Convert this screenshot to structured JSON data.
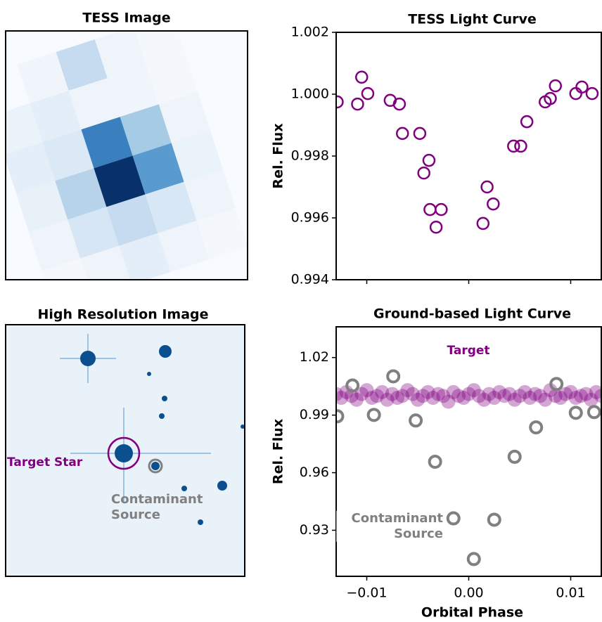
{
  "chart_data": [
    {
      "type": "image",
      "title": "TESS Image"
    },
    {
      "type": "scatter",
      "title": "TESS Light Curve",
      "ylabel": "Rel. Flux",
      "color": "#800080",
      "marker": "open",
      "x": [
        -0.0129,
        -0.0109,
        -0.0105,
        -0.0099,
        -0.0077,
        -0.0068,
        -0.0065,
        -0.0048,
        -0.0039,
        -0.0044,
        -0.0038,
        -0.0027,
        -0.0032,
        0.0018,
        0.0024,
        0.0014,
        0.0044,
        0.0051,
        0.0057,
        0.0075,
        0.008,
        0.0085,
        0.0105,
        0.0111,
        0.0121
      ],
      "values": [
        0.99975,
        0.99968,
        1.00055,
        1.00002,
        0.9998,
        0.99968,
        0.99873,
        0.99873,
        0.99786,
        0.99745,
        0.99627,
        0.99627,
        0.9957,
        0.997,
        0.99645,
        0.99582,
        0.99832,
        0.99832,
        0.99911,
        0.99975,
        0.99986,
        1.00027,
        1.00002,
        1.00023,
        1.00002
      ],
      "xlim": [
        -0.013,
        0.013
      ],
      "xticks": [
        -0.01,
        0,
        0.01
      ],
      "xtick_labels": false,
      "ylim": [
        0.994,
        1.002
      ],
      "yticks": [
        1.002,
        {
          "value": 1.0,
          "label": "1.000"
        },
        0.998,
        0.996,
        0.994
      ]
    },
    {
      "type": "image",
      "title": "High Resolution Image",
      "annotations": [
        "Target Star",
        "Contaminant Source"
      ]
    },
    {
      "type": "scatter",
      "title": "Ground-based Light Curve",
      "ylabel": "Rel. Flux",
      "xlabel": "Orbital Phase",
      "xlim": [
        -0.013,
        0.013
      ],
      "xticks": [
        {
          "value": -0.01,
          "label": "−0.01"
        },
        {
          "value": 0,
          "label": "0.00"
        },
        0.01
      ],
      "ylim": [
        0.906,
        1.036
      ],
      "yticks": [
        1.02,
        0.99,
        0.96,
        0.93
      ],
      "series": [
        {
          "name": "Target",
          "color": "#800080",
          "marker": "filled",
          "x": [
            -0.013,
            -0.0125,
            -0.012,
            -0.0115,
            -0.011,
            -0.0105,
            -0.01,
            -0.0095,
            -0.009,
            -0.0085,
            -0.008,
            -0.0075,
            -0.007,
            -0.0065,
            -0.006,
            -0.0055,
            -0.005,
            -0.0045,
            -0.004,
            -0.0035,
            -0.003,
            -0.0025,
            -0.002,
            -0.0015,
            -0.001,
            -0.0005,
            0,
            0.0005,
            0.001,
            0.0015,
            0.002,
            0.0025,
            0.003,
            0.0035,
            0.004,
            0.0045,
            0.005,
            0.0055,
            0.006,
            0.0065,
            0.007,
            0.0075,
            0.008,
            0.0085,
            0.009,
            0.0095,
            0.01,
            0.0105,
            0.011,
            0.0115,
            0.012,
            0.0125,
            0.013
          ],
          "values": [
            1.001,
            0.999,
            1.002,
            1.0,
            0.998,
            1.001,
            1.003,
            0.999,
            1.0,
            1.002,
            0.998,
            1.001,
            0.999,
            1.0,
            1.003,
            1.001,
            0.998,
            1.0,
            1.002,
            0.999,
            1.001,
            1.0,
            0.997,
            1.002,
            1.0,
            0.999,
            1.001,
            1.003,
            1.0,
            0.998,
            1.001,
            0.999,
            1.002,
            1.0,
            1.001,
            0.998,
            1.0,
            1.002,
            0.999,
            1.001,
            1.0,
            0.998,
            1.003,
            1.0,
            0.999,
            1.001,
            1.002,
            0.999,
            1.0,
            1.001,
            0.998,
            1.002,
            1.0
          ]
        },
        {
          "name": "Contaminant Source",
          "color": "#808080",
          "marker": "open",
          "x": [
            -0.0129,
            -0.0114,
            -0.0093,
            -0.0074,
            -0.0052,
            -0.0033,
            -0.0015,
            0.0005,
            0.0025,
            0.0045,
            0.0066,
            0.0086,
            0.0105,
            0.0123
          ],
          "values": [
            0.9894,
            1.0054,
            0.9901,
            1.0102,
            0.9872,
            0.9657,
            0.9362,
            0.915,
            0.9355,
            0.9683,
            0.9836,
            1.0062,
            0.9912,
            0.9916
          ]
        }
      ]
    }
  ]
}
